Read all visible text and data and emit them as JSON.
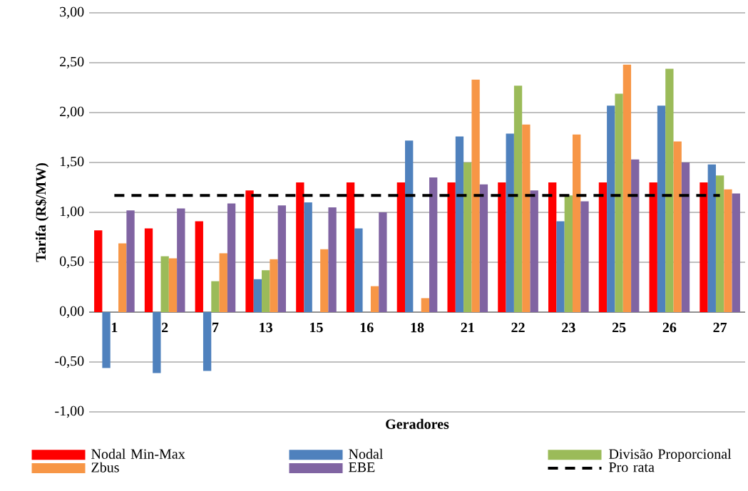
{
  "chart_data": {
    "type": "bar",
    "xlabel": "Geradores",
    "ylabel": "Tarifa (R$/MW)",
    "categories": [
      "1",
      "2",
      "7",
      "13",
      "15",
      "16",
      "18",
      "21",
      "22",
      "23",
      "25",
      "26",
      "27"
    ],
    "series": [
      {
        "name": "Nodal Min-Max",
        "color": "#ff0000",
        "values": [
          0.82,
          0.84,
          0.91,
          1.22,
          1.3,
          1.3,
          1.3,
          1.3,
          1.3,
          1.3,
          1.3,
          1.3,
          1.3
        ]
      },
      {
        "name": "Nodal",
        "color": "#4f81bd",
        "values": [
          -0.56,
          -0.61,
          -0.59,
          0.33,
          1.1,
          0.84,
          1.72,
          1.76,
          1.79,
          0.91,
          2.07,
          2.07,
          1.48
        ]
      },
      {
        "name": "Divisão Proporcional",
        "color": "#9bbb59",
        "values": [
          null,
          0.56,
          0.31,
          0.42,
          null,
          null,
          null,
          1.5,
          2.27,
          1.17,
          2.19,
          2.44,
          1.37
        ]
      },
      {
        "name": "Zbus",
        "color": "#f79646",
        "values": [
          0.69,
          0.54,
          0.59,
          0.53,
          0.63,
          0.26,
          0.14,
          2.33,
          1.88,
          1.78,
          2.48,
          1.71,
          1.23
        ]
      },
      {
        "name": "EBE",
        "color": "#8064a2",
        "values": [
          1.02,
          1.04,
          1.09,
          1.07,
          1.05,
          1.0,
          1.35,
          1.28,
          1.22,
          1.11,
          1.53,
          1.5,
          1.19
        ]
      },
      {
        "name": "Pro rata",
        "color": "#000000",
        "type": "line",
        "line_style": "dashed",
        "marker": "none",
        "values": [
          1.17,
          1.17,
          1.17,
          1.17,
          1.17,
          1.17,
          1.17,
          1.17,
          1.17,
          1.17,
          1.17,
          1.17,
          1.17
        ]
      }
    ],
    "ylim": [
      -1,
      3
    ],
    "yticks": [
      {
        "value": -1,
        "label": "-1,00"
      },
      {
        "value": -0.5,
        "label": "-0,50"
      },
      {
        "value": 0,
        "label": "0,00"
      },
      {
        "value": 0.5,
        "label": "0,50"
      },
      {
        "value": 1,
        "label": "1,00"
      },
      {
        "value": 1.5,
        "label": "1,50"
      },
      {
        "value": 2,
        "label": "2,00"
      },
      {
        "value": 2.5,
        "label": "2,50"
      },
      {
        "value": 3,
        "label": "3,00"
      }
    ],
    "grid": "y",
    "legend": "bottom"
  }
}
